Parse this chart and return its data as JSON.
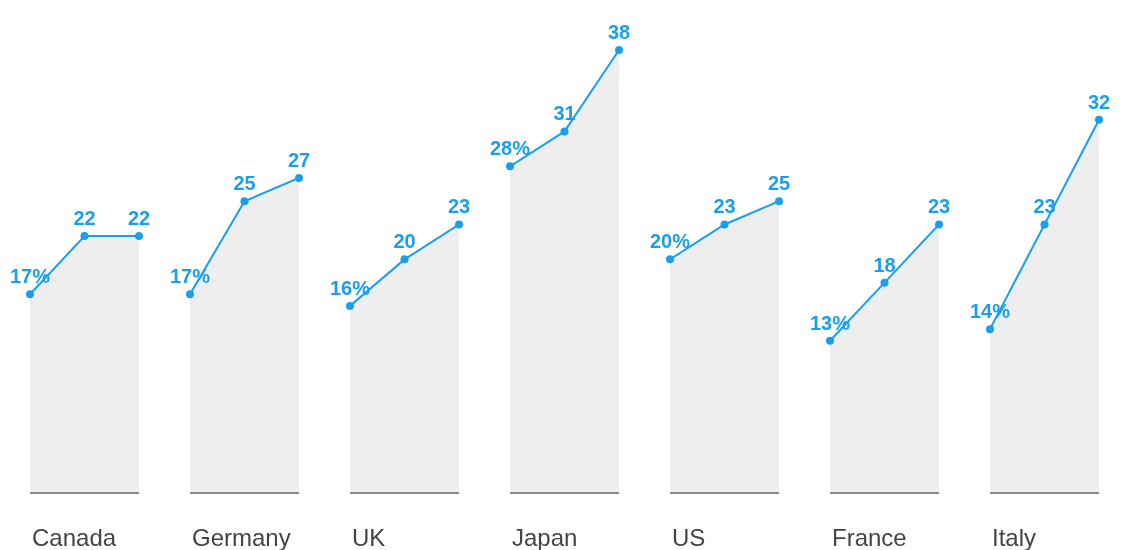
{
  "chart_data": [
    {
      "type": "area",
      "xlabel": "Canada",
      "categories": [
        null,
        null,
        null
      ],
      "values": [
        17,
        22,
        22
      ],
      "value_labels": [
        "17%",
        "22",
        "22"
      ],
      "color": "#1a9ff0"
    },
    {
      "type": "area",
      "xlabel": "Germany",
      "categories": [
        null,
        null,
        null
      ],
      "values": [
        17,
        25,
        27
      ],
      "value_labels": [
        "17%",
        "25",
        "27"
      ],
      "color": "#1a9ff0"
    },
    {
      "type": "area",
      "xlabel": "UK",
      "categories": [
        null,
        null,
        null
      ],
      "values": [
        16,
        20,
        23
      ],
      "value_labels": [
        "16%",
        "20",
        "23"
      ],
      "color": "#1a9ff0"
    },
    {
      "type": "area",
      "xlabel": "Japan",
      "categories": [
        null,
        null,
        null
      ],
      "values": [
        28,
        31,
        38
      ],
      "value_labels": [
        "28%",
        "31",
        "38"
      ],
      "color": "#1a9ff0"
    },
    {
      "type": "area",
      "xlabel": "US",
      "categories": [
        null,
        null,
        null
      ],
      "values": [
        20,
        23,
        25
      ],
      "value_labels": [
        "20%",
        "23",
        "25"
      ],
      "color": "#1a9ff0"
    },
    {
      "type": "area",
      "xlabel": "France",
      "categories": [
        null,
        null,
        null
      ],
      "values": [
        13,
        18,
        23
      ],
      "value_labels": [
        "13%",
        "18",
        "23"
      ],
      "color": "#1a9ff0"
    },
    {
      "type": "area",
      "xlabel": "Italy",
      "categories": [
        null,
        null,
        null
      ],
      "values": [
        14,
        23,
        32
      ],
      "value_labels": [
        "14%",
        "23",
        "32"
      ],
      "color": "#1a9ff0"
    }
  ]
}
